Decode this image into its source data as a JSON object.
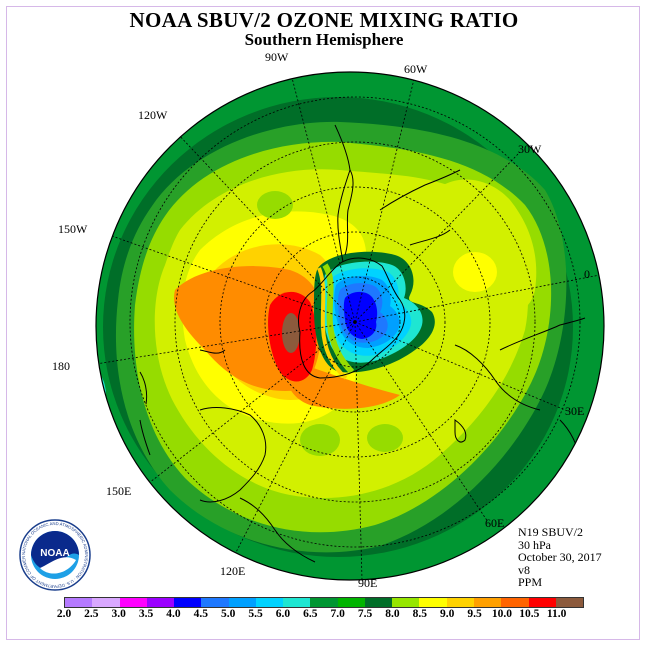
{
  "title": "NOAA SBUV/2 OZONE MIXING RATIO",
  "subtitle": "Southern Hemisphere",
  "logo": {
    "text": "NOAA",
    "ring_text": "NATIONAL OCEANIC AND ATMOSPHERIC ADMINISTRATION · U.S. DEPARTMENT OF COMMERCE"
  },
  "info": {
    "instrument": "N19 SBUV/2",
    "level": "30 hPa",
    "date": "October 30, 2017",
    "version": "v8",
    "units": "PPM"
  },
  "longitude_labels": [
    "90W",
    "60W",
    "30W",
    "0",
    "30E",
    "60E",
    "90E",
    "120E",
    "150E",
    "180",
    "150W",
    "120W"
  ],
  "colorbar": {
    "ticks": [
      "2.0",
      "2.5",
      "3.0",
      "3.5",
      "4.0",
      "4.5",
      "5.0",
      "5.5",
      "6.0",
      "6.5",
      "7.0",
      "7.5",
      "8.0",
      "8.5",
      "9.0",
      "9.5",
      "10.0",
      "10.5",
      "11.0"
    ],
    "colors": [
      "#b57aff",
      "#d9a8ff",
      "#ff00ff",
      "#9b00ff",
      "#0000ff",
      "#1e78ff",
      "#00a0ff",
      "#00d2ff",
      "#1ee6d2",
      "#009632",
      "#00b400",
      "#006e28",
      "#96e600",
      "#ffff00",
      "#ffd200",
      "#ffa000",
      "#ff6400",
      "#ff0000",
      "#8c5a3c"
    ]
  },
  "map_colors": {
    "6.5": "#009632",
    "7.0": "#006e28",
    "7.5": "#28a028",
    "8.0": "#96dc00",
    "8.5": "#d2f000",
    "9.0": "#ffff00",
    "9.5": "#ffd200",
    "10.0": "#ff8c00",
    "10.5": "#ff0000",
    "11.0": "#8c5a3c",
    "low_4.0": "#0000ff",
    "low_4.5": "#1e78ff",
    "low_5.0": "#00a0ff",
    "low_5.5": "#00d2ff",
    "low_6.0": "#1ee6d2"
  }
}
